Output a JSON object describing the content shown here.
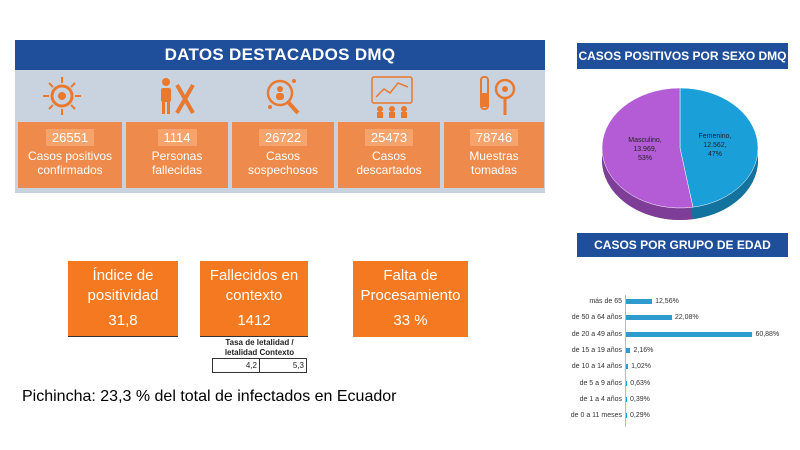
{
  "header": {
    "title": "DATOS DESTACADOS DMQ"
  },
  "cards": [
    {
      "value": "26551",
      "label": "Casos positivos confirmados",
      "icon": "virus-icon"
    },
    {
      "value": "1114",
      "label": "Personas fallecidas",
      "icon": "person-x-icon"
    },
    {
      "value": "26722",
      "label": "Casos sospechosos",
      "icon": "magnifier-people-icon"
    },
    {
      "value": "25473",
      "label": "Casos descartados",
      "icon": "group-icon"
    },
    {
      "value": "78746",
      "label": "Muestras tomadas",
      "icon": "test-tube-icon"
    }
  ],
  "kpis": [
    {
      "title": "Índice de positividad",
      "value": "31,8"
    },
    {
      "title": "Fallecidos en contexto",
      "value": "1412"
    },
    {
      "title": "Falta de Procesamiento",
      "value": "33 %"
    }
  ],
  "mini_table": {
    "header": "Tasa de letalidad / letalidad Contexto",
    "values": [
      "4,2",
      "5,3"
    ]
  },
  "footer": {
    "text": "Pichincha: 23,3 % del total de infectados en Ecuador"
  },
  "colors": {
    "navy": "#1f4e9b",
    "orange": "#f47920",
    "card_orange": "#ee8a4b",
    "panel": "#c9d3e0",
    "pie_female": "#1a9fd9",
    "pie_male": "#b45cd6",
    "bar": "#2e9bcf"
  },
  "chart_data": [
    {
      "type": "pie",
      "title": "CASOS POSITIVOS POR SEXO DMQ",
      "slices": [
        {
          "name": "Femenino",
          "value": 12562,
          "label_value": "12.562",
          "percent": "47%"
        },
        {
          "name": "Masculino",
          "value": 13969,
          "label_value": "13.969",
          "percent": "53%"
        }
      ]
    },
    {
      "type": "bar",
      "title": "CASOS POR GRUPO DE EDAD",
      "categories": [
        "más de 65",
        "de 50 a 64 años",
        "de 20 a 49 años",
        "de 15 a 19 años",
        "de 10 a 14 años",
        "de 5 a 9 años",
        "de 1 a 4 años",
        "de 0 a 11 meses"
      ],
      "values": [
        12.56,
        22.08,
        60.88,
        2.16,
        1.02,
        0.63,
        0.39,
        0.29
      ],
      "value_labels": [
        "12,56%",
        "22,08%",
        "60,88%",
        "2,16%",
        "1,02%",
        "0,63%",
        "0,39%",
        "0,29%"
      ],
      "xlim": [
        0,
        65
      ]
    }
  ]
}
